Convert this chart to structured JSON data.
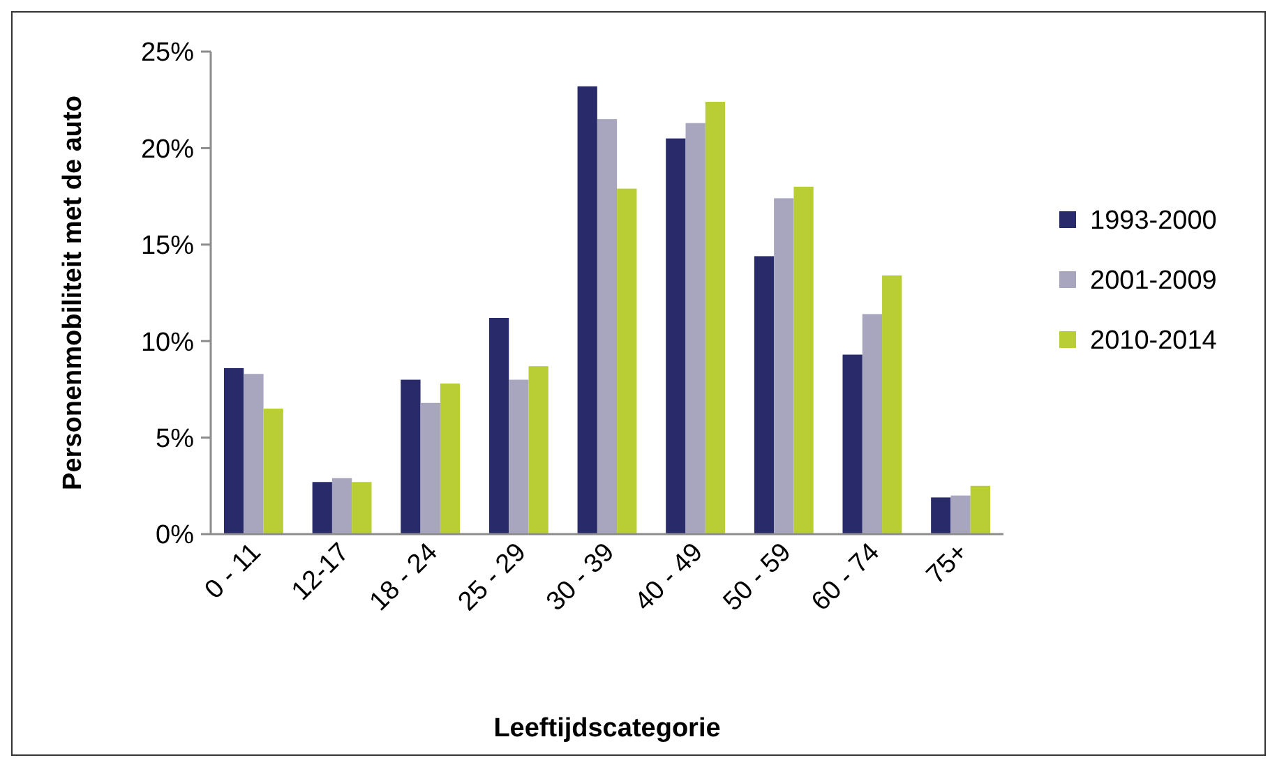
{
  "chart_data": {
    "type": "bar",
    "xlabel": "Leeftijdscategorie",
    "ylabel": "Personenmobiliteit met de auto",
    "categories": [
      "0 - 11",
      "12-17",
      "18 - 24",
      "25 - 29",
      "30 - 39",
      "40 - 49",
      "50 - 59",
      "60 - 74",
      "75+"
    ],
    "series": [
      {
        "name": "1993-2000",
        "color": "#282a69",
        "values": [
          8.6,
          2.7,
          8.0,
          11.2,
          23.2,
          20.5,
          14.4,
          9.3,
          1.9
        ]
      },
      {
        "name": "2001-2009",
        "color": "#a8a5bf",
        "values": [
          8.3,
          2.9,
          6.8,
          8.0,
          21.5,
          21.3,
          17.4,
          11.4,
          2.0
        ]
      },
      {
        "name": "2010-2014",
        "color": "#b9cd35",
        "values": [
          6.5,
          2.7,
          7.8,
          8.7,
          17.9,
          22.4,
          18.0,
          13.4,
          2.5
        ]
      }
    ],
    "ylim": [
      0,
      25
    ],
    "yticks": [
      {
        "value": 0,
        "label": "0%"
      },
      {
        "value": 5,
        "label": "5%"
      },
      {
        "value": 10,
        "label": "10%"
      },
      {
        "value": 15,
        "label": "15%"
      },
      {
        "value": 20,
        "label": "20%"
      },
      {
        "value": 25,
        "label": "25%"
      }
    ],
    "grid": false,
    "legend": "right"
  }
}
